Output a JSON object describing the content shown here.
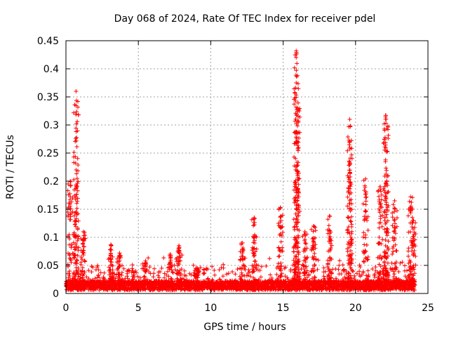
{
  "chart_data": {
    "type": "scatter",
    "title": "Day 068 of 2024, Rate Of TEC Index for receiver pdel",
    "xlabel": "GPS time / hours",
    "ylabel": "ROTI / TECUs",
    "xlim": [
      0,
      25
    ],
    "ylim": [
      0,
      0.45
    ],
    "x_ticks": [
      0,
      5,
      10,
      15,
      20,
      25
    ],
    "y_ticks": [
      0,
      0.05,
      0.1,
      0.15,
      0.2,
      0.25,
      0.3,
      0.35,
      0.4,
      0.45
    ],
    "x_tick_labels": [
      "0",
      "5",
      "10",
      "15",
      "20",
      "25"
    ],
    "y_tick_labels": [
      "0",
      "0.05",
      "0.1",
      "0.15",
      "0.2",
      "0.25",
      "0.3",
      "0.35",
      "0.4",
      "0.45"
    ],
    "grid": true,
    "marker": "+",
    "marker_color": "#ff0000",
    "series": [
      {
        "name": "ROTI",
        "base_level": 0.015,
        "data_span_hours": [
          0,
          24.1
        ],
        "approx_envelope": [
          {
            "x": 0.3,
            "y": 0.2
          },
          {
            "x": 0.7,
            "y": 0.36
          },
          {
            "x": 0.7,
            "y": 0.22
          },
          {
            "x": 1.2,
            "y": 0.11
          },
          {
            "x": 3.1,
            "y": 0.087
          },
          {
            "x": 3.7,
            "y": 0.072
          },
          {
            "x": 5.5,
            "y": 0.058
          },
          {
            "x": 7.2,
            "y": 0.07
          },
          {
            "x": 7.8,
            "y": 0.085
          },
          {
            "x": 9.0,
            "y": 0.045
          },
          {
            "x": 12.2,
            "y": 0.09
          },
          {
            "x": 13.0,
            "y": 0.135
          },
          {
            "x": 14.8,
            "y": 0.153
          },
          {
            "x": 15.9,
            "y": 0.432
          },
          {
            "x": 15.9,
            "y": 0.375
          },
          {
            "x": 16.0,
            "y": 0.33
          },
          {
            "x": 16.5,
            "y": 0.11
          },
          {
            "x": 17.1,
            "y": 0.12
          },
          {
            "x": 18.2,
            "y": 0.138
          },
          {
            "x": 19.6,
            "y": 0.31
          },
          {
            "x": 19.6,
            "y": 0.26
          },
          {
            "x": 20.7,
            "y": 0.204
          },
          {
            "x": 21.7,
            "y": 0.19
          },
          {
            "x": 22.1,
            "y": 0.317
          },
          {
            "x": 22.1,
            "y": 0.255
          },
          {
            "x": 22.7,
            "y": 0.165
          },
          {
            "x": 23.8,
            "y": 0.172
          },
          {
            "x": 24.0,
            "y": 0.13
          }
        ]
      }
    ]
  }
}
